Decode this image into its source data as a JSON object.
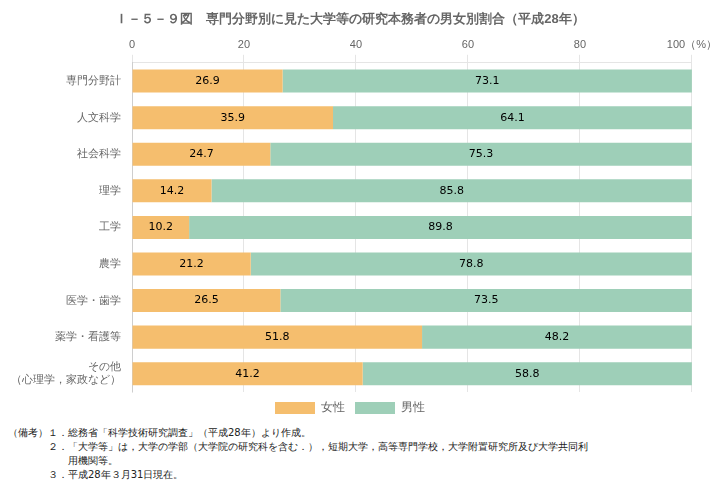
{
  "chart_data": {
    "type": "bar",
    "orientation": "horizontal",
    "stacked": true,
    "title": "Ｉ－５－９図　専門分野別に見た大学等の研究本務者の男女別割合（平成28年）",
    "categories": [
      "専門分野計",
      "人文科学",
      "社会科学",
      "理学",
      "工学",
      "農学",
      "医学・歯学",
      "薬学・看護等",
      "その他\n（心理学，家政など）"
    ],
    "series": [
      {
        "name": "女性",
        "color": "#F5BE6E",
        "values": [
          26.9,
          35.9,
          24.7,
          14.2,
          10.2,
          21.2,
          26.5,
          51.8,
          41.2
        ]
      },
      {
        "name": "男性",
        "color": "#9ECFB8",
        "values": [
          73.1,
          64.1,
          75.3,
          85.8,
          89.8,
          78.8,
          73.5,
          48.2,
          58.8
        ]
      }
    ],
    "xlim": [
      0,
      100
    ],
    "xticks": [
      0,
      20,
      40,
      60,
      80,
      {
        "value": 100,
        "label": "100（%）"
      }
    ],
    "grid": true,
    "data_labels": true,
    "legend": "bottom",
    "annotations": [
      "（備考）１．総務省「科学技術研究調査」（平成28年）より作成。",
      "　　　　２．「大学等」は，大学の学部（大学院の研究科を含む．），短期大学，高等専門学校，大学附置研究所及び大学共同利",
      "　　　　　　用機関等。",
      "　　　　３．平成28年３月31日現在。"
    ]
  }
}
